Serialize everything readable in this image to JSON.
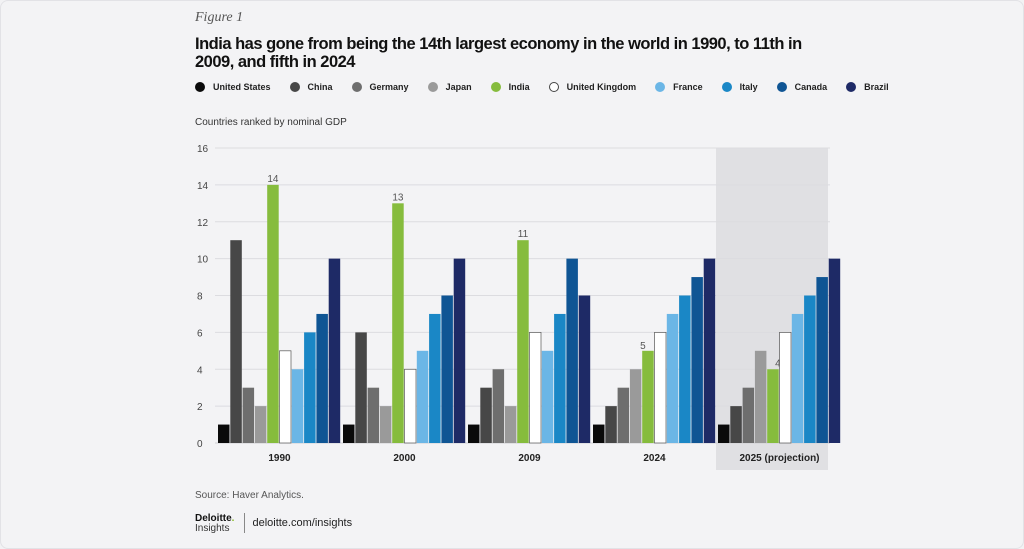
{
  "figure_label": "Figure 1",
  "title": "India has gone from being the 14th largest economy in the world in 1990, to 11th in 2009, and fifth in 2024",
  "source": "Source: Haver Analytics.",
  "brand": {
    "name": "Deloitte",
    "dot": ".",
    "sub": "Insights",
    "url": "deloitte.com/insights"
  },
  "chart_data": {
    "type": "bar",
    "title": "India has gone from being the 14th largest economy in the world in 1990, to 11th in 2009, and fifth in 2024",
    "xlabel": "",
    "ylabel": "Countries ranked by nominal GDP",
    "ylim": [
      0,
      16
    ],
    "yticks": [
      0,
      2,
      4,
      6,
      8,
      10,
      12,
      14,
      16
    ],
    "grid": true,
    "legend_position": "top",
    "categories": [
      "1990",
      "2000",
      "2009",
      "2024",
      "2025 (projection)"
    ],
    "highlighted_category": "2025 (projection)",
    "series": [
      {
        "name": "United States",
        "color": "#0a0a0a",
        "values": [
          1,
          1,
          1,
          1,
          1
        ]
      },
      {
        "name": "China",
        "color": "#474747",
        "values": [
          11,
          6,
          3,
          2,
          2
        ]
      },
      {
        "name": "Germany",
        "color": "#6e6e6e",
        "values": [
          3,
          3,
          4,
          3,
          3
        ]
      },
      {
        "name": "Japan",
        "color": "#9a9a9a",
        "values": [
          2,
          2,
          2,
          4,
          5
        ]
      },
      {
        "name": "India",
        "color": "#86bc3d",
        "values": [
          14,
          13,
          11,
          5,
          4
        ],
        "data_labels": true
      },
      {
        "name": "United Kingdom",
        "color": "#ffffff",
        "values": [
          5,
          4,
          6,
          6,
          6
        ]
      },
      {
        "name": "France",
        "color": "#6bb6e6",
        "values": [
          4,
          5,
          5,
          7,
          7
        ]
      },
      {
        "name": "Italy",
        "color": "#1a87c6",
        "values": [
          6,
          7,
          7,
          8,
          8
        ]
      },
      {
        "name": "Canada",
        "color": "#0f5594",
        "values": [
          7,
          8,
          10,
          9,
          9
        ]
      },
      {
        "name": "Brazil",
        "color": "#1e2a66",
        "values": [
          10,
          10,
          8,
          10,
          10
        ]
      }
    ]
  }
}
